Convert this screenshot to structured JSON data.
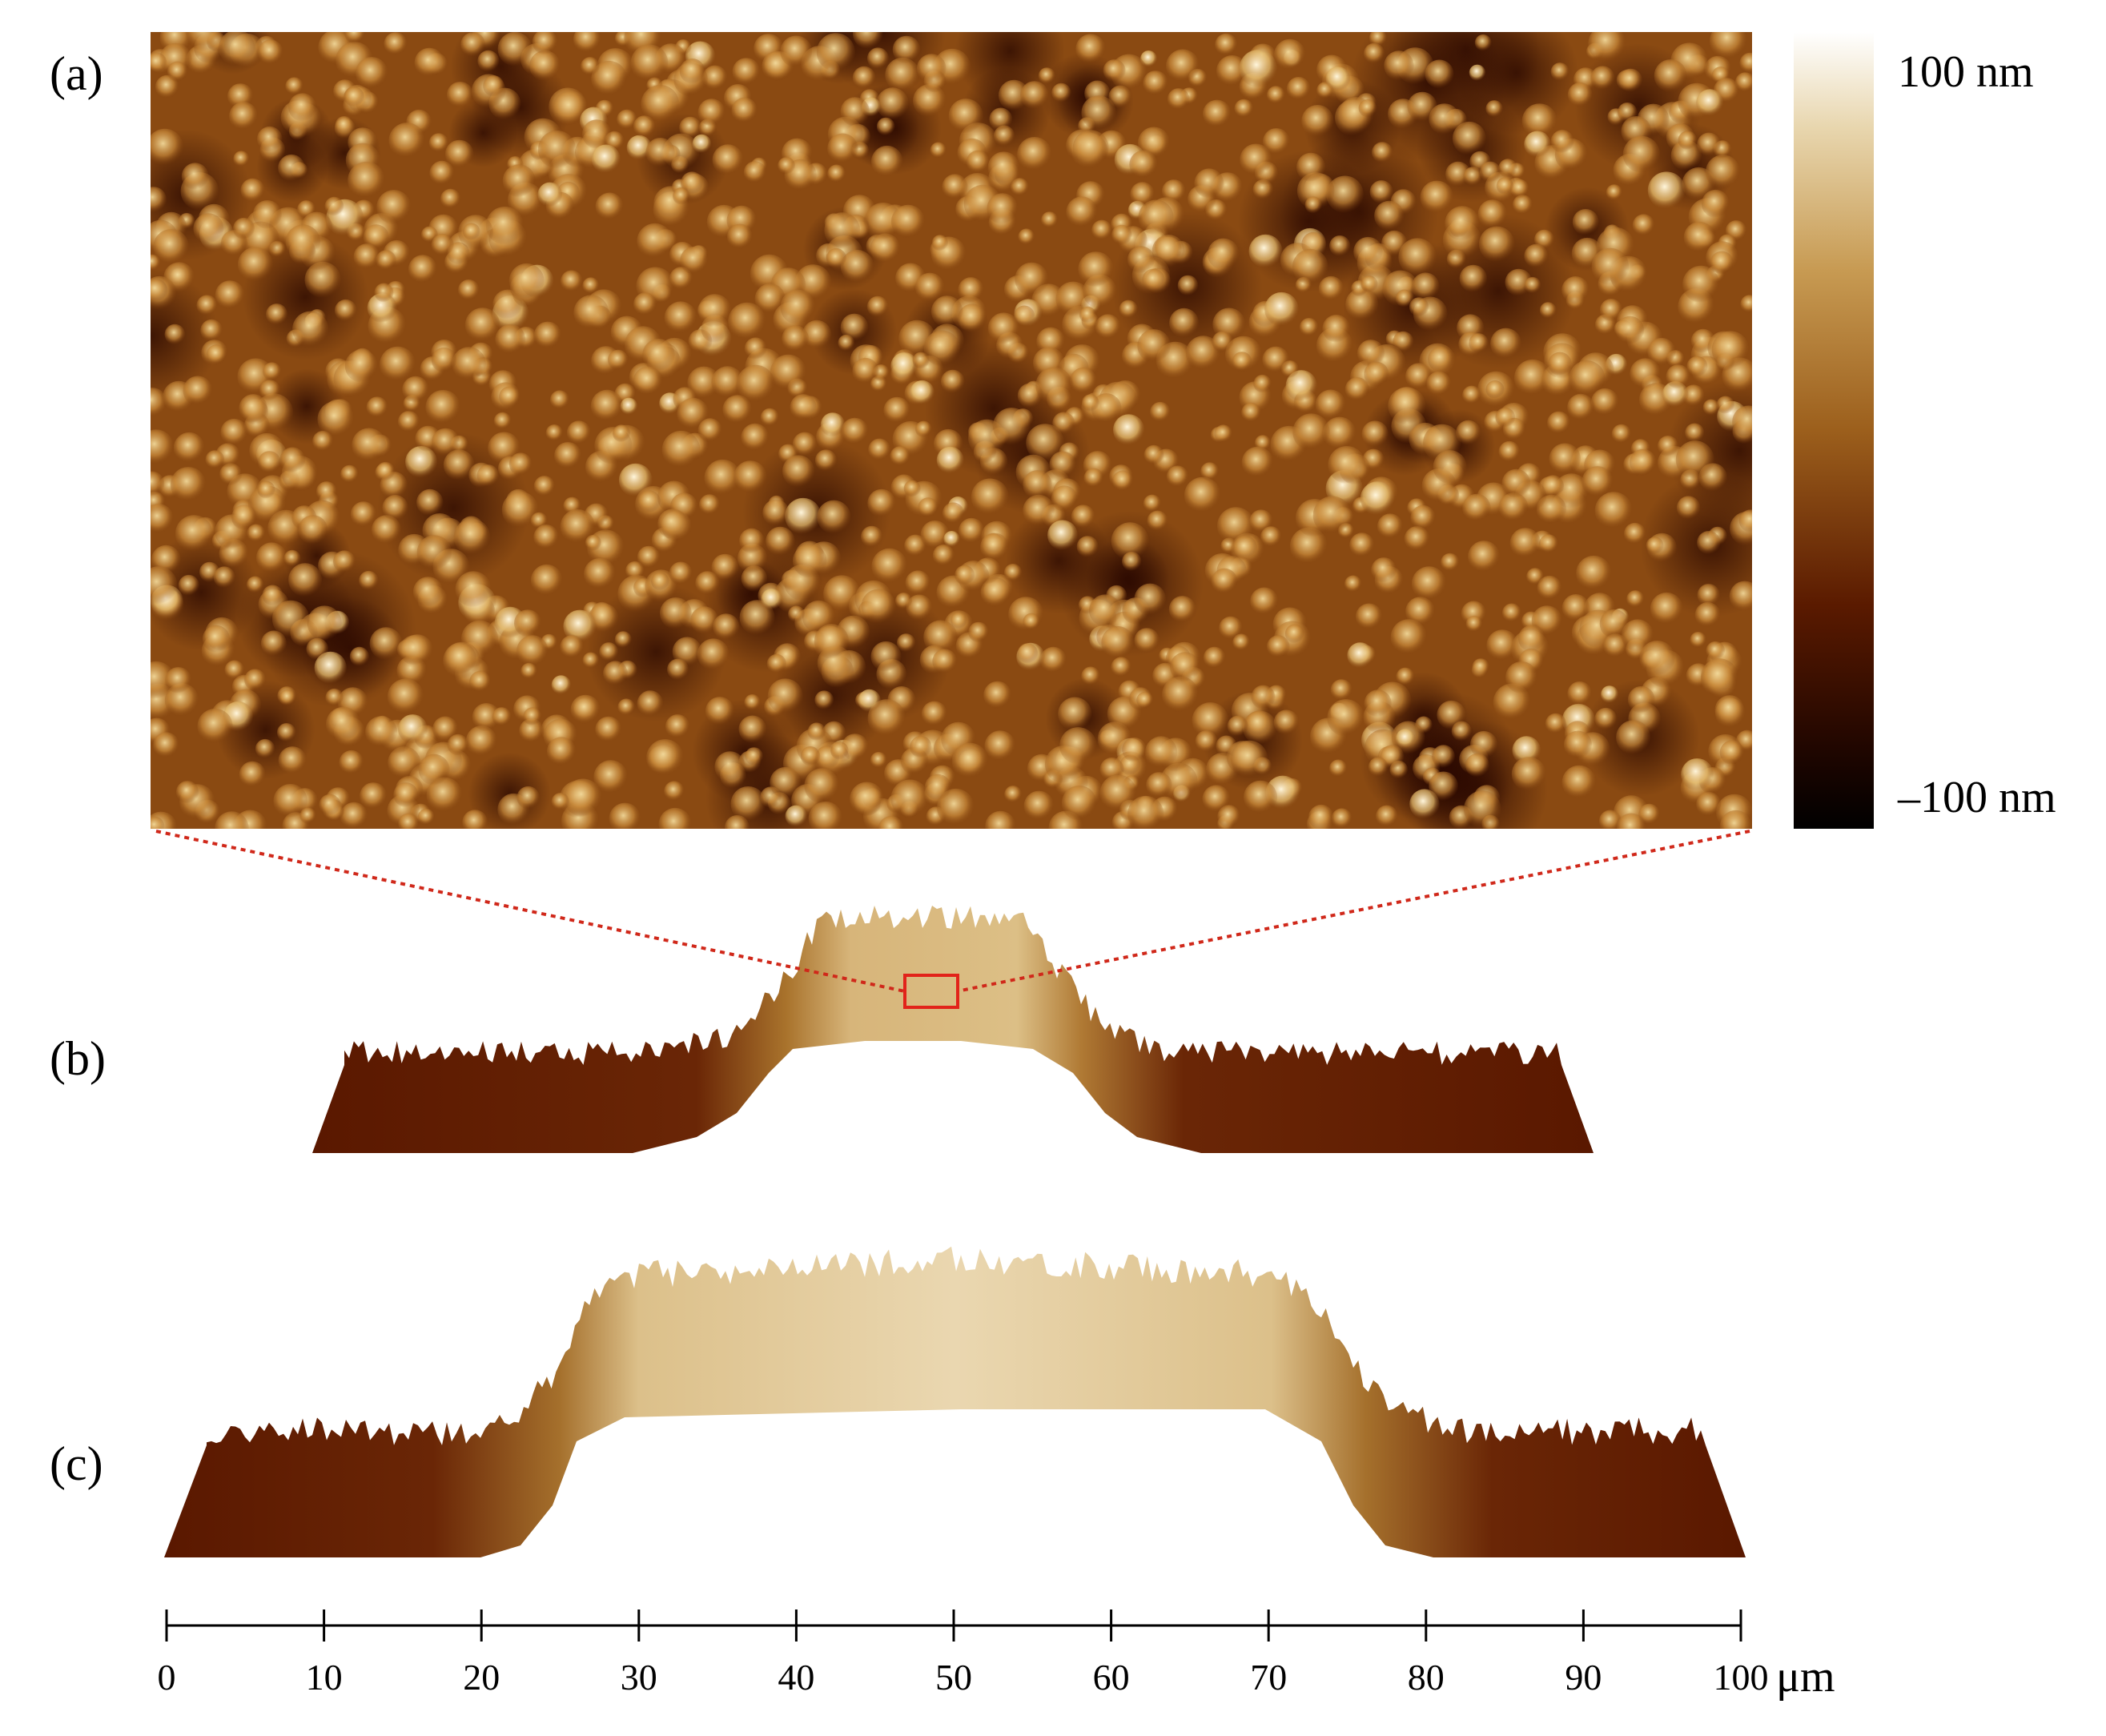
{
  "panels": {
    "a": "(a)",
    "b": "(b)",
    "c": "(c)"
  },
  "colorbar": {
    "max_label": "100 nm",
    "min_label": "–100 nm",
    "colors": [
      "#ffffff",
      "#e8d6ae",
      "#c79a52",
      "#9c5f1c",
      "#5a1a00",
      "#200600",
      "#000000"
    ]
  },
  "scale_axis": {
    "ticks": [
      "0",
      "10",
      "20",
      "30",
      "40",
      "50",
      "60",
      "70",
      "80",
      "90",
      "100"
    ],
    "unit": "μm",
    "range": [
      0,
      100
    ]
  },
  "colors": {
    "inset_marker": "#e2231a",
    "profile_dark": "#5a1800",
    "profile_light": "#d9bc82",
    "image_base": "#8a4a12"
  }
}
